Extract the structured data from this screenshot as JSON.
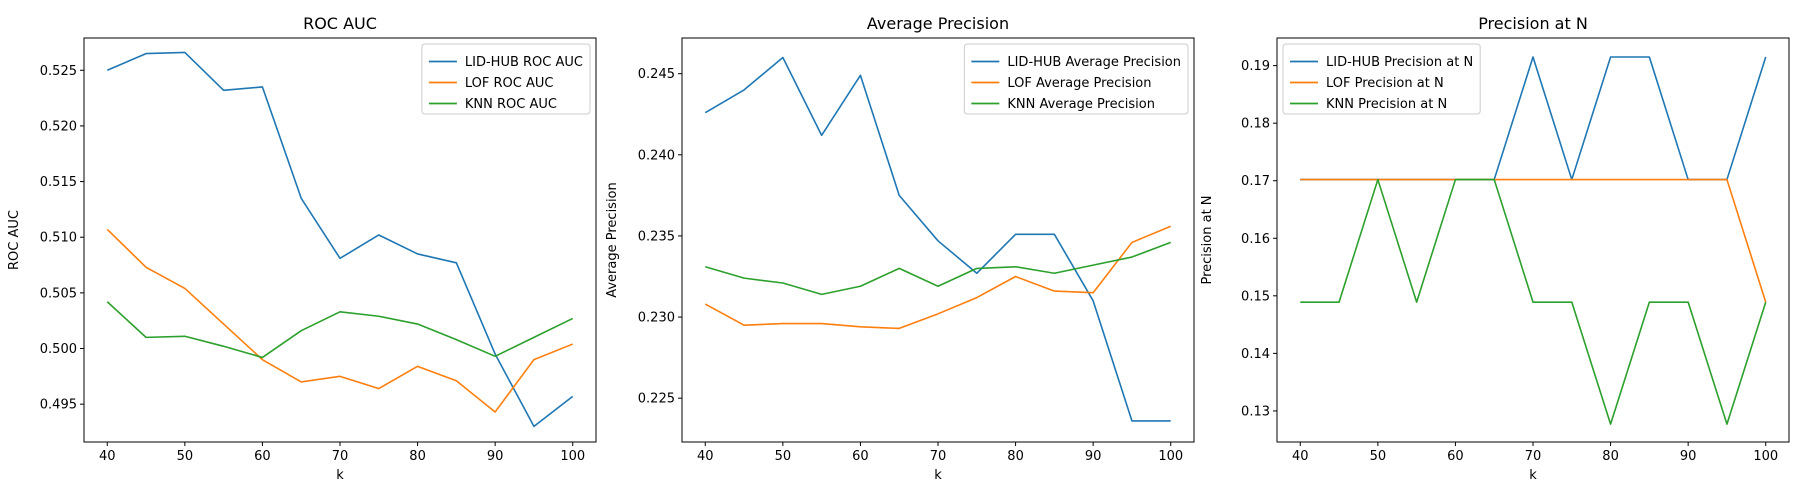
{
  "chart_data": [
    {
      "type": "line",
      "title": "ROC AUC",
      "xlabel": "k",
      "ylabel": "ROC AUC",
      "xlim": [
        37,
        103
      ],
      "ylim": [
        0.4916,
        0.5279
      ],
      "xticks": [
        40,
        50,
        60,
        70,
        80,
        90,
        100
      ],
      "yticks": [
        0.495,
        0.5,
        0.505,
        0.51,
        0.515,
        0.52,
        0.525
      ],
      "ytick_labels": [
        "0.495",
        "0.500",
        "0.505",
        "0.510",
        "0.515",
        "0.520",
        "0.525"
      ],
      "x": [
        40,
        45,
        50,
        55,
        60,
        65,
        70,
        75,
        80,
        85,
        90,
        95,
        100
      ],
      "legend_position": "top-right",
      "grid": false,
      "series": [
        {
          "name": "LID-HUB ROC AUC",
          "color": "#1f77b4",
          "values": [
            0.525,
            0.5265,
            0.5266,
            0.5232,
            0.5235,
            0.5135,
            0.5081,
            0.5102,
            0.5085,
            0.5077,
            0.4995,
            0.493,
            0.4957
          ]
        },
        {
          "name": "LOF ROC AUC",
          "color": "#ff7f0e",
          "values": [
            0.5107,
            0.5073,
            0.5054,
            0.5022,
            0.499,
            0.497,
            0.4975,
            0.4964,
            0.4984,
            0.4971,
            0.4943,
            0.499,
            0.5004
          ]
        },
        {
          "name": "KNN ROC AUC",
          "color": "#2ca02c",
          "values": [
            0.5042,
            0.501,
            0.5011,
            0.5002,
            0.4992,
            0.5016,
            0.5033,
            0.5029,
            0.5022,
            0.5008,
            0.4993,
            0.501,
            0.5027
          ]
        }
      ]
    },
    {
      "type": "line",
      "title": "Average Precision",
      "xlabel": "k",
      "ylabel": "Average Precision",
      "xlim": [
        37,
        103
      ],
      "ylim": [
        0.2223,
        0.2472
      ],
      "xticks": [
        40,
        50,
        60,
        70,
        80,
        90,
        100
      ],
      "yticks": [
        0.225,
        0.23,
        0.235,
        0.24,
        0.245
      ],
      "ytick_labels": [
        "0.225",
        "0.230",
        "0.235",
        "0.240",
        "0.245"
      ],
      "x": [
        40,
        45,
        50,
        55,
        60,
        65,
        70,
        75,
        80,
        85,
        90,
        95,
        100
      ],
      "legend_position": "top-right",
      "grid": false,
      "series": [
        {
          "name": "LID-HUB Average Precision",
          "color": "#1f77b4",
          "values": [
            0.2426,
            0.244,
            0.246,
            0.2412,
            0.2449,
            0.2375,
            0.2347,
            0.2327,
            0.2351,
            0.2351,
            0.231,
            0.2236,
            0.2236
          ]
        },
        {
          "name": "LOF Average Precision",
          "color": "#ff7f0e",
          "values": [
            0.2308,
            0.2295,
            0.2296,
            0.2296,
            0.2294,
            0.2293,
            0.2302,
            0.2312,
            0.2325,
            0.2316,
            0.2315,
            0.2346,
            0.2356
          ]
        },
        {
          "name": "KNN Average Precision",
          "color": "#2ca02c",
          "values": [
            0.2331,
            0.2324,
            0.2321,
            0.2314,
            0.2319,
            0.233,
            0.2319,
            0.233,
            0.2331,
            0.2327,
            0.2332,
            0.2337,
            0.2346
          ]
        }
      ]
    },
    {
      "type": "line",
      "title": "Precision at N",
      "xlabel": "k",
      "ylabel": "Precision at N",
      "xlim": [
        37,
        103
      ],
      "ylim": [
        0.1246,
        0.1948
      ],
      "xticks": [
        40,
        50,
        60,
        70,
        80,
        90,
        100
      ],
      "yticks": [
        0.13,
        0.14,
        0.15,
        0.16,
        0.17,
        0.18,
        0.19
      ],
      "ytick_labels": [
        "0.13",
        "0.14",
        "0.15",
        "0.16",
        "0.17",
        "0.18",
        "0.19"
      ],
      "x": [
        40,
        45,
        50,
        55,
        60,
        65,
        70,
        75,
        80,
        85,
        90,
        95,
        100
      ],
      "legend_position": "top-left",
      "grid": false,
      "series": [
        {
          "name": "LID-HUB Precision at N",
          "color": "#1f77b4",
          "values": [
            0.1702,
            0.1702,
            0.1702,
            0.1702,
            0.1702,
            0.1702,
            0.1915,
            0.1702,
            0.1915,
            0.1915,
            0.1702,
            0.1702,
            0.1915
          ]
        },
        {
          "name": "LOF Precision at N",
          "color": "#ff7f0e",
          "values": [
            0.1702,
            0.1702,
            0.1702,
            0.1702,
            0.1702,
            0.1702,
            0.1702,
            0.1702,
            0.1702,
            0.1702,
            0.1702,
            0.1702,
            0.1489
          ]
        },
        {
          "name": "KNN Precision at N",
          "color": "#2ca02c",
          "values": [
            0.1489,
            0.1489,
            0.1702,
            0.1489,
            0.1702,
            0.1702,
            0.1489,
            0.1489,
            0.1277,
            0.1489,
            0.1489,
            0.1277,
            0.1489
          ]
        }
      ]
    }
  ]
}
